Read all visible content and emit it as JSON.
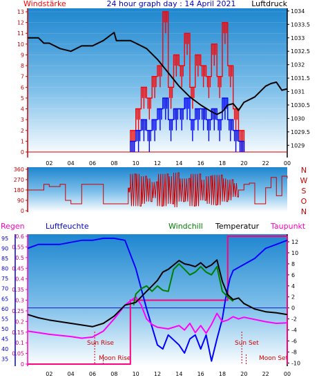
{
  "header": {
    "left_label": "Windstärke",
    "title": "24 hour graph day : 14 April 2021",
    "right_label": "Luftdruck"
  },
  "colors": {
    "wind": "#ff0000",
    "pressure": "#000000",
    "direction": "#cc0000",
    "humidity": "#0000ff",
    "windchill": "#008000",
    "temperature": "#000000",
    "dewpoint": "#ff00ff",
    "rain": "#ff0080"
  },
  "chart_data": [
    {
      "type": "line",
      "name": "wind-pressure",
      "x_ticks": [
        "02",
        "04",
        "06",
        "08",
        "10",
        "12",
        "14",
        "16",
        "18",
        "20",
        "22",
        "00"
      ],
      "y_left_ticks": [
        "0",
        "1",
        "2",
        "3",
        "4",
        "5",
        "6",
        "7",
        "8",
        "9",
        "10",
        "11",
        "12",
        "13"
      ],
      "y_right_ticks": [
        "1029",
        "1029.5",
        "1030",
        "1030.5",
        "1031",
        "1031.5",
        "1032",
        "1032.5",
        "1033",
        "1033.5",
        "1034"
      ],
      "ylim_left": [
        0,
        13
      ],
      "ylim_right": [
        1028.75,
        1034.1
      ],
      "pressure": {
        "x": [
          0,
          1,
          1.5,
          2,
          3,
          4,
          5,
          6,
          7,
          8,
          8.2,
          9.5,
          10,
          11,
          12,
          13,
          14,
          15,
          16,
          17,
          17.5,
          18,
          18.5,
          19,
          19.5,
          20,
          21,
          22,
          22.5,
          23,
          23.5,
          24
        ],
        "y": [
          1033.0,
          1033.0,
          1032.8,
          1032.8,
          1032.6,
          1032.5,
          1032.7,
          1032.7,
          1032.9,
          1033.2,
          1032.9,
          1032.9,
          1032.8,
          1032.6,
          1032.2,
          1031.7,
          1031.2,
          1030.8,
          1030.5,
          1030.25,
          1030.15,
          1030.25,
          1030.5,
          1030.55,
          1030.3,
          1030.6,
          1030.8,
          1031.2,
          1031.3,
          1031.35,
          1031.05,
          1031.1
        ]
      },
      "wind_gust": {
        "x": [
          9.5,
          10,
          10.5,
          11,
          11.5,
          12,
          12.5,
          13,
          13.5,
          14,
          14.5,
          15,
          15.5,
          16,
          16.5,
          17,
          17.5,
          18,
          18.5,
          19,
          19.5
        ],
        "y": [
          2,
          4,
          6,
          5,
          7,
          8,
          13,
          6,
          9,
          8,
          11,
          6,
          9,
          8,
          7,
          10,
          7,
          12,
          8,
          4,
          2
        ]
      },
      "wind_mean": {
        "x": [
          9.5,
          10,
          10.5,
          11,
          11.5,
          12,
          12.5,
          13,
          13.5,
          14,
          14.5,
          15,
          15.5,
          16,
          16.5,
          17,
          17.5,
          18,
          18.5,
          19,
          19.5
        ],
        "y": [
          1,
          2,
          3,
          2,
          3,
          4,
          5,
          3,
          4,
          4,
          5,
          3,
          4,
          4,
          3,
          4,
          3,
          5,
          3,
          2,
          1
        ]
      }
    },
    {
      "type": "line",
      "name": "wind-direction",
      "y_ticks": [
        "0",
        "90",
        "180",
        "270",
        "360"
      ],
      "y_right_labels": [
        "N",
        "W",
        "S",
        "O",
        "N"
      ],
      "ylim": [
        0,
        360
      ],
      "direction": {
        "x": [
          0,
          1,
          1.5,
          2,
          3,
          3.5,
          4,
          5,
          6,
          7,
          8,
          9,
          9.3,
          9.5,
          10,
          10.5,
          11,
          11.5,
          12,
          12.5,
          13,
          13.5,
          14,
          14.5,
          15,
          15.5,
          16,
          16.5,
          17,
          17.5,
          18,
          18.5,
          19,
          19.5,
          20,
          20.5,
          21,
          22,
          22.5,
          23,
          23.5,
          24
        ],
        "y": [
          180,
          180,
          230,
          210,
          230,
          90,
          60,
          230,
          230,
          60,
          60,
          60,
          200,
          320,
          40,
          300,
          80,
          250,
          40,
          320,
          60,
          330,
          80,
          280,
          40,
          320,
          90,
          300,
          50,
          310,
          80,
          270,
          120,
          180,
          230,
          240,
          60,
          200,
          290,
          130,
          300,
          280
        ]
      }
    },
    {
      "type": "line",
      "name": "climate",
      "legend": [
        "Regen",
        "Luftfeuchte",
        "Windchill",
        "Temperatur",
        "Taupunkt"
      ],
      "y_humidity_ticks": [
        "35",
        "40",
        "45",
        "50",
        "55",
        "60",
        "65",
        "70",
        "75",
        "80",
        "85",
        "90",
        "95"
      ],
      "y_rain_ticks": [
        "0",
        "0.05",
        "0.1",
        "0.15",
        "0.2",
        "0.25",
        "0.3",
        "0.35",
        "0.4",
        "0.45",
        "0.5",
        "0.55",
        "0.6"
      ],
      "y_temp_ticks": [
        "-10",
        "-8",
        "-6",
        "-4",
        "-2",
        "0",
        "2",
        "4",
        "6",
        "8",
        "10",
        "12"
      ],
      "annotations": [
        "Sun Rise",
        "Moon Rise",
        "Sun Set",
        "Moon Set"
      ],
      "ylim_humidity": [
        32.5,
        96
      ],
      "ylim_rain": [
        0,
        0.6
      ],
      "ylim_temp": [
        -10.2,
        13
      ],
      "humidity": {
        "x": [
          0,
          1,
          2,
          3,
          4,
          5,
          6,
          7,
          8,
          9,
          10,
          10.5,
          11,
          12,
          12.5,
          13,
          14,
          14.5,
          15,
          15.5,
          16,
          16.5,
          17,
          17.5,
          18,
          18.3,
          18.7,
          19,
          20,
          21,
          22,
          23,
          24
        ],
        "y": [
          90,
          92,
          92,
          92,
          93,
          94,
          94,
          95,
          95,
          94,
          80,
          70,
          60,
          42,
          40,
          47,
          42,
          38,
          45,
          47,
          40,
          47,
          34,
          45,
          55,
          65,
          75,
          79,
          82,
          85,
          90,
          92,
          94
        ]
      },
      "temperature": {
        "x": [
          0,
          1,
          2,
          3,
          4,
          5,
          6,
          7,
          8,
          9,
          10,
          10.5,
          11,
          11.5,
          12,
          12.5,
          13,
          13.5,
          14,
          14.5,
          15,
          15.5,
          16,
          16.5,
          17,
          17.5,
          18,
          18.5,
          19,
          19.5,
          20,
          21,
          22,
          23,
          24
        ],
        "y": [
          -1.2,
          -1.8,
          -2.2,
          -2.5,
          -2.8,
          -3.1,
          -3.4,
          -2.8,
          -1.5,
          0.5,
          1.0,
          2.0,
          3.0,
          4.0,
          5.0,
          6.5,
          7.0,
          7.8,
          8.6,
          8.0,
          7.8,
          7.5,
          8.2,
          7.3,
          7.8,
          8.7,
          4.8,
          2.4,
          1.5,
          1.8,
          0.8,
          -0.2,
          -0.7,
          -0.9,
          -1.2
        ]
      },
      "windchill": {
        "x": [
          9.8,
          10,
          10.5,
          11,
          11.5,
          12,
          12.5,
          13,
          13.5,
          14,
          14.5,
          15,
          15.5,
          16,
          16.5,
          17,
          17.5,
          18,
          18.5,
          19
        ],
        "y": [
          0.5,
          2.5,
          3.5,
          4.0,
          3.0,
          4.0,
          3.2,
          3.0,
          7.0,
          8.0,
          7.0,
          6.0,
          6.5,
          7.5,
          6.5,
          6.0,
          7.5,
          3.0,
          2.0,
          1.2
        ]
      },
      "dewpoint": {
        "x": [
          0,
          1,
          2,
          3,
          4,
          5,
          6,
          7,
          8,
          9,
          10,
          10.5,
          11,
          11.5,
          12,
          13,
          14,
          14.5,
          15,
          15.5,
          16,
          16.5,
          17,
          17.5,
          18,
          18.5,
          19,
          19.5,
          20,
          21,
          22,
          23,
          24
        ],
        "y": [
          -4.2,
          -4.5,
          -4.8,
          -5.0,
          -5.2,
          -5.5,
          -5.3,
          -4.2,
          -2.0,
          0.5,
          2.0,
          0.5,
          -2.0,
          -3.0,
          -3.5,
          -3.8,
          -3.2,
          -4.0,
          -2.8,
          -4.5,
          -3.2,
          -4.6,
          -3.0,
          -1.0,
          -2.5,
          -2.2,
          -1.6,
          -2.0,
          -1.7,
          -2.1,
          -2.5,
          -2.8,
          -2.7
        ]
      },
      "rain": {
        "x": [
          0,
          9.5,
          9.5,
          18.5,
          18.5,
          24,
          24
        ],
        "y": [
          0,
          0,
          0.3,
          0.3,
          0.6,
          0.6,
          0
        ]
      }
    }
  ]
}
